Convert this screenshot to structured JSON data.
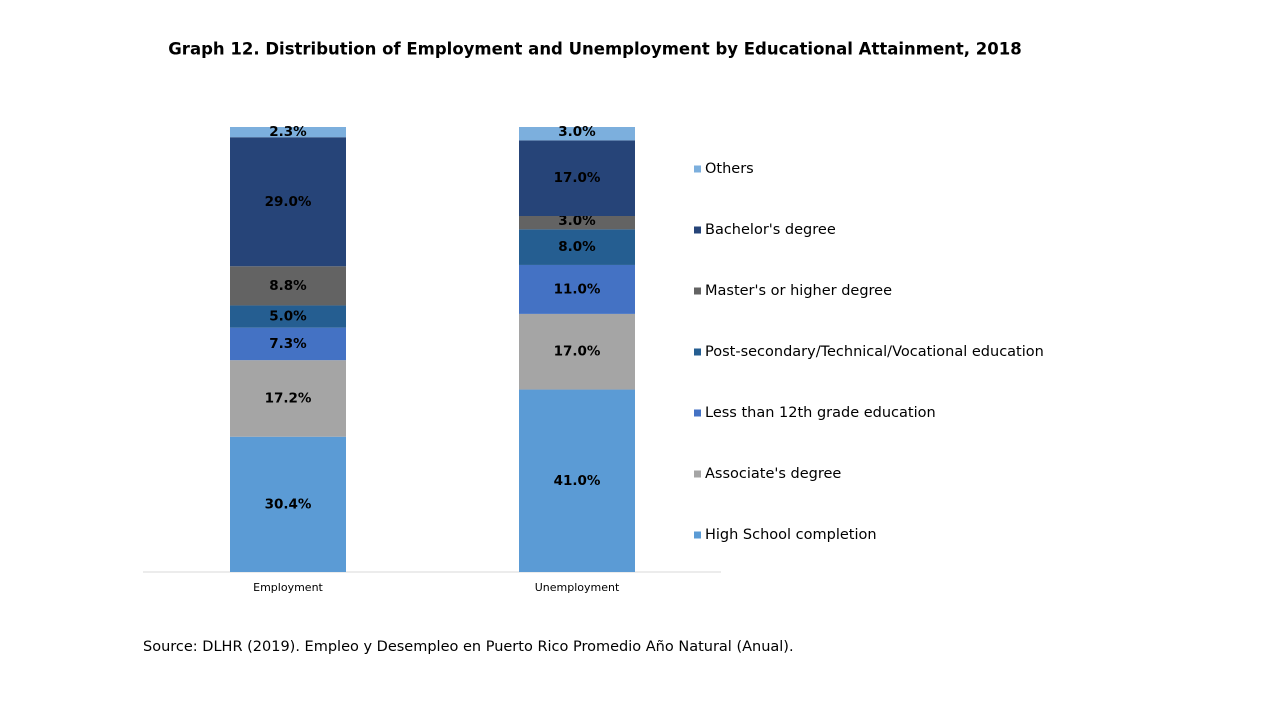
{
  "chart_data": {
    "type": "bar",
    "stacked": true,
    "legend": "right",
    "title": "Graph 12. Distribution of Employment and Unemployment by Educational Attainment, 2018",
    "source": "Source: DLHR (2019). Empleo y Desempleo en Puerto Rico Promedio  Año Natural (Anual).",
    "categories": [
      "Employment",
      "Unemployment"
    ],
    "series": [
      {
        "name": "High School completion",
        "color": "#5b9bd5",
        "values": [
          30.4,
          41.0
        ],
        "value_labels": [
          "30.4%",
          "41.0%"
        ]
      },
      {
        "name": "Associate's degree",
        "color": "#a5a5a5",
        "values": [
          17.2,
          17.0
        ],
        "value_labels": [
          "17.2%",
          "17.0%"
        ]
      },
      {
        "name": "Less than 12th grade education",
        "color": "#4472c4",
        "values": [
          7.3,
          11.0
        ],
        "value_labels": [
          "7.3%",
          "11.0%"
        ]
      },
      {
        "name": "Post-secondary/Technical/Vocational education",
        "color": "#255e91",
        "values": [
          5.0,
          8.0
        ],
        "value_labels": [
          "5.0%",
          "8.0%"
        ]
      },
      {
        "name": "Master's or higher degree",
        "color": "#636363",
        "values": [
          8.8,
          3.0
        ],
        "value_labels": [
          "8.8%",
          "3.0%"
        ]
      },
      {
        "name": "Bachelor's degree",
        "color": "#264478",
        "values": [
          29.0,
          17.0
        ],
        "value_labels": [
          "29.0%",
          "17.0%"
        ]
      },
      {
        "name": "Others",
        "color": "#7cafdd",
        "values": [
          2.3,
          3.0
        ],
        "value_labels": [
          "2.3%",
          "3.0%"
        ]
      }
    ]
  }
}
